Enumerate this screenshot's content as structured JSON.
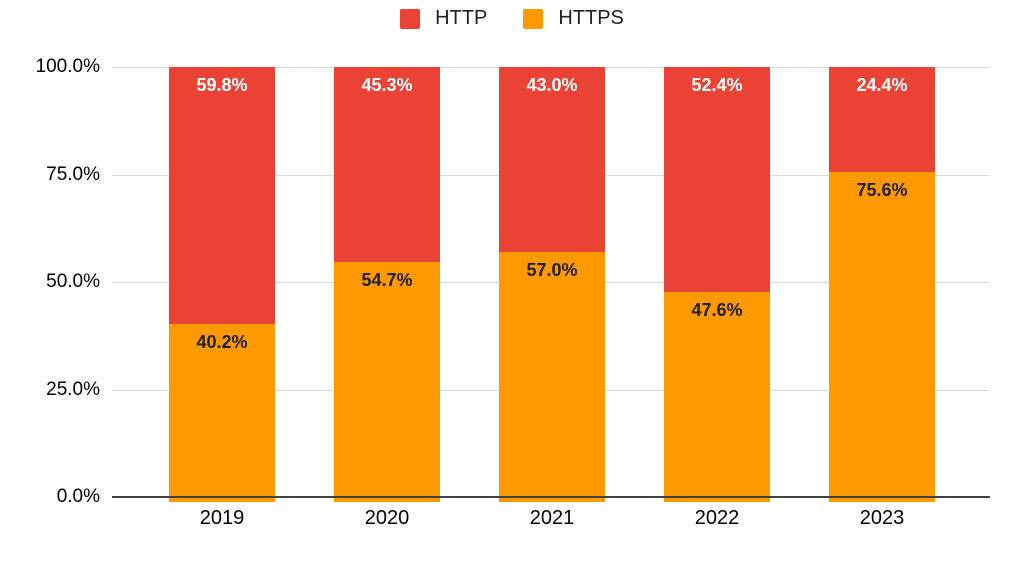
{
  "legend": {
    "items": [
      {
        "label": "HTTP",
        "color": "#EA4335"
      },
      {
        "label": "HTTPS",
        "color": "#FF9900"
      }
    ]
  },
  "chart_data": {
    "type": "bar",
    "stacked": true,
    "orientation": "vertical",
    "title": "",
    "xlabel": "",
    "ylabel": "",
    "categories": [
      "2019",
      "2020",
      "2021",
      "2022",
      "2023"
    ],
    "series": [
      {
        "name": "HTTP",
        "color": "#EA4335",
        "label_color": "#ffffff",
        "values": [
          59.8,
          45.3,
          43.0,
          52.4,
          24.4
        ],
        "labels": [
          "59.8%",
          "45.3%",
          "43.0%",
          "52.4%",
          "24.4%"
        ]
      },
      {
        "name": "HTTPS",
        "color": "#FF9900",
        "label_color": "#202020",
        "values": [
          40.2,
          54.7,
          57.0,
          47.6,
          75.6
        ],
        "labels": [
          "40.2%",
          "54.7%",
          "57.0%",
          "47.6%",
          "75.6%"
        ]
      }
    ],
    "y_ticks": [
      {
        "label": "100.0%",
        "value": 100
      },
      {
        "label": "75.0%",
        "value": 75
      },
      {
        "label": "50.0%",
        "value": 50
      },
      {
        "label": "25.0%",
        "value": 25
      },
      {
        "label": "0.0%",
        "value": 0
      }
    ],
    "ylim": [
      0,
      100
    ],
    "grid": true,
    "legend_position": "top",
    "gridline_color": "#d9d9d9",
    "baseline_color": "#424242"
  }
}
